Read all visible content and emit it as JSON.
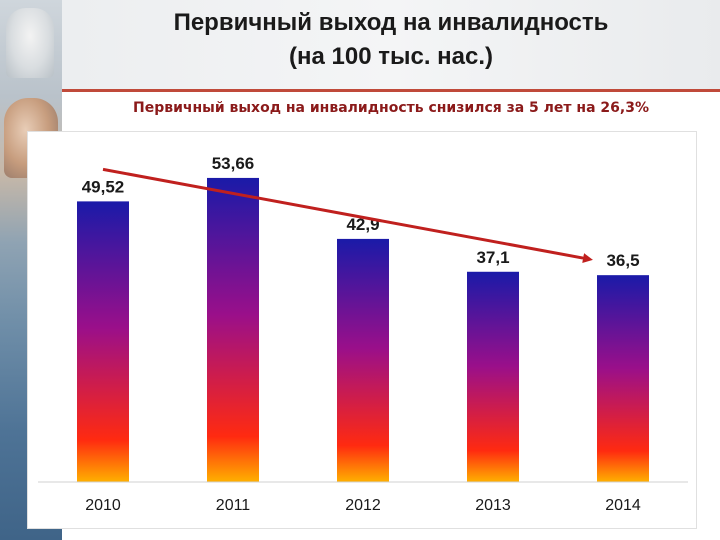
{
  "header": {
    "title_line1": "Первичный выход на инвалидность",
    "title_line2": "(на 100 тыс. нас.)"
  },
  "subtitle": "Первичный выход на инвалидность снизился за 5 лет на 26,3%",
  "chart_data": {
    "type": "bar",
    "title": "",
    "xlabel": "",
    "ylabel": "",
    "categories": [
      "2010",
      "2011",
      "2012",
      "2013",
      "2014"
    ],
    "values": [
      49.52,
      53.66,
      42.9,
      37.1,
      36.5
    ],
    "value_labels": [
      "49,52",
      "53,66",
      "42,9",
      "37,1",
      "36,5"
    ],
    "ylim": [
      0,
      60
    ],
    "grid": false,
    "legend": "none",
    "bar_gradient": {
      "top": "#1a1aa8",
      "middle": "#9a0f8a",
      "bottom": "#ff2a10",
      "base": "#ffb000"
    },
    "trend_arrow": {
      "color": "#c0201e",
      "from": "2010",
      "to": "2014"
    }
  }
}
